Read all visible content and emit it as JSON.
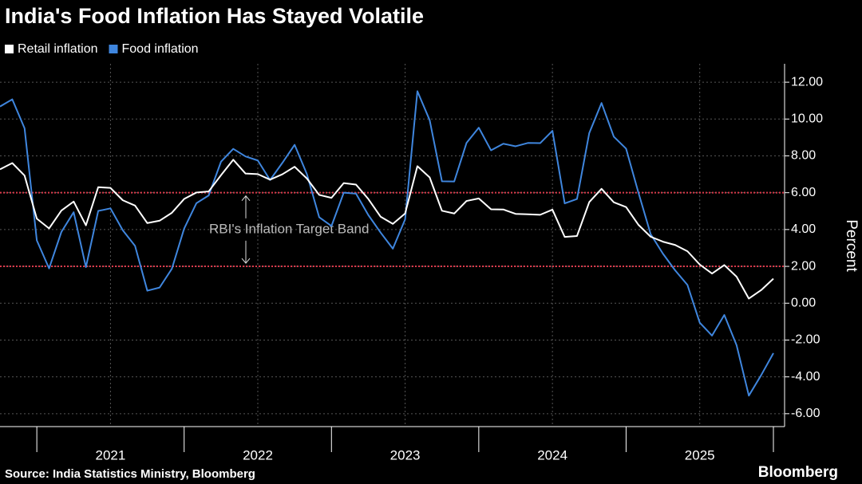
{
  "chart_data": {
    "type": "line",
    "title": "India's Food Inflation Has Stayed Volatile",
    "y_label": "Percent",
    "source": "Source: India Statistics Ministry, Bloomberg",
    "brand": "Bloomberg",
    "annotation": "RBI's Inflation Target Band",
    "reference_lines": [
      {
        "value": 6,
        "color": "#d8394a"
      },
      {
        "value": 2,
        "color": "#d8394a"
      }
    ],
    "x": [
      2020.75,
      2020.8333,
      2020.9167,
      2021.0,
      2021.0833,
      2021.1667,
      2021.25,
      2021.3333,
      2021.4167,
      2021.5,
      2021.5833,
      2021.6667,
      2021.75,
      2021.8333,
      2021.9167,
      2022.0,
      2022.0833,
      2022.1667,
      2022.25,
      2022.3333,
      2022.4167,
      2022.5,
      2022.5833,
      2022.6667,
      2022.75,
      2022.8333,
      2022.9167,
      2023.0,
      2023.0833,
      2023.1667,
      2023.25,
      2023.3333,
      2023.4167,
      2023.5,
      2023.5833,
      2023.6667,
      2023.75,
      2023.8333,
      2023.9167,
      2024.0,
      2024.0833,
      2024.1667,
      2024.25,
      2024.3333,
      2024.4167,
      2024.5,
      2024.5833,
      2024.6667,
      2024.75,
      2024.8333,
      2024.9167,
      2025.0,
      2025.0833,
      2025.1667,
      2025.25,
      2025.3333,
      2025.4167,
      2025.5,
      2025.5833,
      2025.6667,
      2025.75,
      2025.8333,
      2025.9167,
      2026.0
    ],
    "series": [
      {
        "name": "Retail inflation",
        "color": "#ffffff",
        "values": [
          7.27,
          7.61,
          6.93,
          4.59,
          4.06,
          5.03,
          5.52,
          4.23,
          6.3,
          6.26,
          5.59,
          5.3,
          4.35,
          4.48,
          4.91,
          5.66,
          6.01,
          6.07,
          6.95,
          7.79,
          7.04,
          7.01,
          6.71,
          7.0,
          7.41,
          6.77,
          5.88,
          5.72,
          6.52,
          6.44,
          5.66,
          4.7,
          4.31,
          4.87,
          7.44,
          6.83,
          5.02,
          4.87,
          5.55,
          5.69,
          5.1,
          5.09,
          4.85,
          4.83,
          4.8,
          5.08,
          3.6,
          3.65,
          5.49,
          6.21,
          5.48,
          5.22,
          4.26,
          3.61,
          3.34,
          3.16,
          2.82,
          2.1,
          1.61,
          2.07,
          1.44,
          0.25,
          0.71,
          1.33
        ]
      },
      {
        "name": "Food inflation",
        "color": "#3f86de",
        "values": [
          10.68,
          11.07,
          9.5,
          3.41,
          1.89,
          3.87,
          4.94,
          1.96,
          5.01,
          5.15,
          3.96,
          3.11,
          0.68,
          0.85,
          1.87,
          4.05,
          5.43,
          5.85,
          7.68,
          8.38,
          7.97,
          7.75,
          6.69,
          7.62,
          8.6,
          7.01,
          4.67,
          4.19,
          6.0,
          5.95,
          4.79,
          3.84,
          2.96,
          4.55,
          11.51,
          9.94,
          6.62,
          6.61,
          8.7,
          9.53,
          8.3,
          8.66,
          8.52,
          8.7,
          8.69,
          9.36,
          5.42,
          5.66,
          9.24,
          10.87,
          9.04,
          8.39,
          6.02,
          3.75,
          2.69,
          1.78,
          0.99,
          -1.06,
          -1.76,
          -0.64,
          -2.28,
          -5.02,
          -3.91,
          -2.71
        ]
      }
    ],
    "xlim": [
      2020.75,
      2026.0
    ],
    "xticks": [
      {
        "value": 2021.5,
        "label": "2021"
      },
      {
        "value": 2022.5,
        "label": "2022"
      },
      {
        "value": 2023.5,
        "label": "2023"
      },
      {
        "value": 2024.5,
        "label": "2024"
      },
      {
        "value": 2025.5,
        "label": "2025"
      }
    ],
    "ylim": [
      -6.7,
      13.0
    ],
    "yticks": [
      {
        "value": 12,
        "label": "12.00"
      },
      {
        "value": 10,
        "label": "10.00"
      },
      {
        "value": 8,
        "label": "8.00"
      },
      {
        "value": 6,
        "label": "6.00"
      },
      {
        "value": 4,
        "label": "4.00"
      },
      {
        "value": 2,
        "label": "2.00"
      },
      {
        "value": 0,
        "label": "0.00"
      },
      {
        "value": -2,
        "label": "-2.00"
      },
      {
        "value": -4,
        "label": "-4.00"
      },
      {
        "value": -6,
        "label": "-6.00"
      }
    ],
    "grid": true,
    "legend": "top-left"
  }
}
